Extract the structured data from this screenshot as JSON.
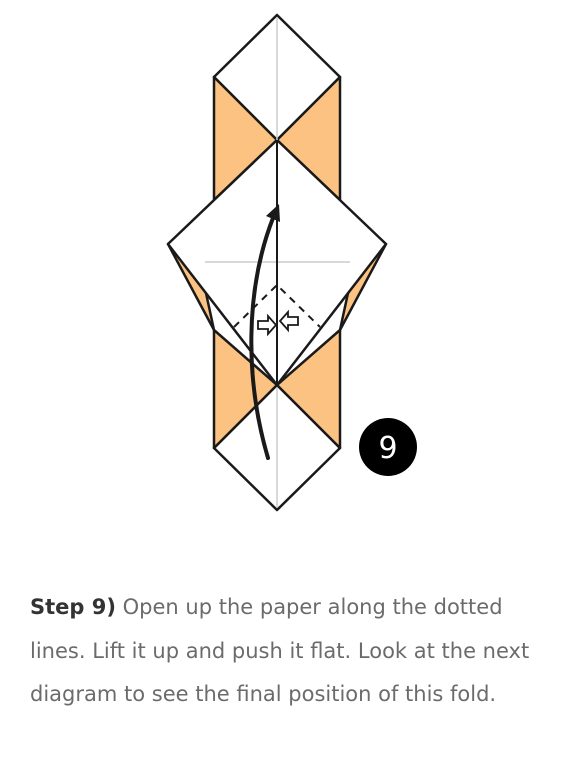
{
  "diagram": {
    "step_badge": "9",
    "colors": {
      "paper_front": "#ffffff",
      "paper_back": "#fbc281",
      "outline": "#1a1a1a",
      "crease": "#cccccc",
      "badge": "#000000"
    },
    "icons": [
      "fold-arrow-icon",
      "push-arrow-icon",
      "valley-fold-dashed-line"
    ]
  },
  "caption": {
    "step_label": "Step 9)",
    "text": " Open up the paper along the dotted lines. Lift it up and push it flat. Look at the next diagram to see the final position of this fold."
  }
}
